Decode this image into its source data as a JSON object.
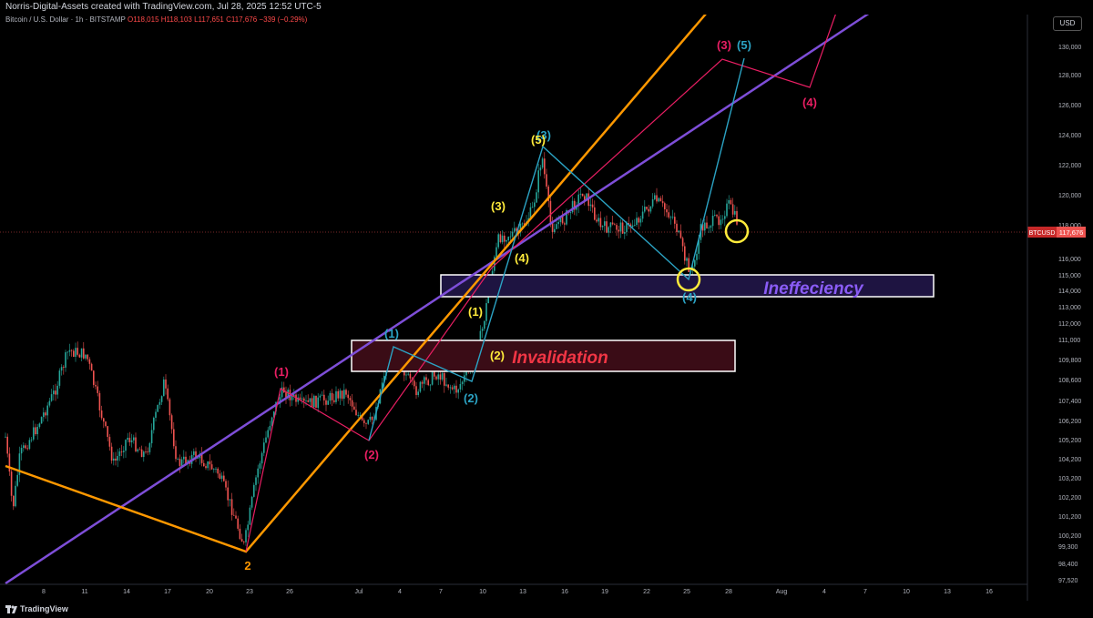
{
  "header": {
    "creator_text": "Norris-Digital-Assets created with TradingView.com, Jul 28, 2025 12:52 UTC-5",
    "symbol_text": "Bitcoin / U.S. Dollar · 1h · BITSTAMP",
    "ohlc_text": "O118,015 H118,103 L117,651 C117,676 −339 (−0.29%)",
    "currency": "USD"
  },
  "price_axis": {
    "labels": [
      "130,000",
      "128,000",
      "126,000",
      "124,000",
      "122,000",
      "120,000",
      "118,000",
      "116,000",
      "115,000",
      "114,000",
      "113,000",
      "112,000",
      "111,000",
      "109,800",
      "108,600",
      "107,400",
      "106,200",
      "105,200",
      "104,200",
      "103,200",
      "102,200",
      "101,200",
      "100,200",
      "99,300",
      "98,400",
      "97,520"
    ]
  },
  "time_axis": {
    "labels": [
      "8",
      "11",
      "14",
      "17",
      "20",
      "23",
      "26",
      "Jul",
      "4",
      "7",
      "10",
      "13",
      "16",
      "19",
      "22",
      "25",
      "28",
      "Aug",
      "4",
      "7",
      "10",
      "13",
      "16"
    ]
  },
  "price_tag": {
    "symbol": "BTCUSD",
    "value": "117,676"
  },
  "zones": {
    "inefficiency_label": "Ineffeciency",
    "invalidation_label": "Invalidation"
  },
  "wave_labels": {
    "red": [
      "(1)",
      "(2)",
      "(3)",
      "(4)"
    ],
    "blue": [
      "(1)",
      "(2)",
      "(3)",
      "(4)",
      "(5)"
    ],
    "yellow": [
      "(1)",
      "(2)",
      "(3)",
      "(4)",
      "(5)"
    ],
    "orange": [
      "2"
    ]
  },
  "colors": {
    "background": "#000000",
    "red": "#e91e63",
    "blue": "#2ba3c4",
    "yellow": "#ffeb3b",
    "orange": "#ff9800",
    "purple": "#7e4ed8",
    "candle_up": "#26a69a",
    "candle_down": "#ef5350",
    "inefficiency_text": "#8a5cf6",
    "invalidation_text": "#f23645"
  },
  "footer": {
    "brand": "TradingView"
  }
}
